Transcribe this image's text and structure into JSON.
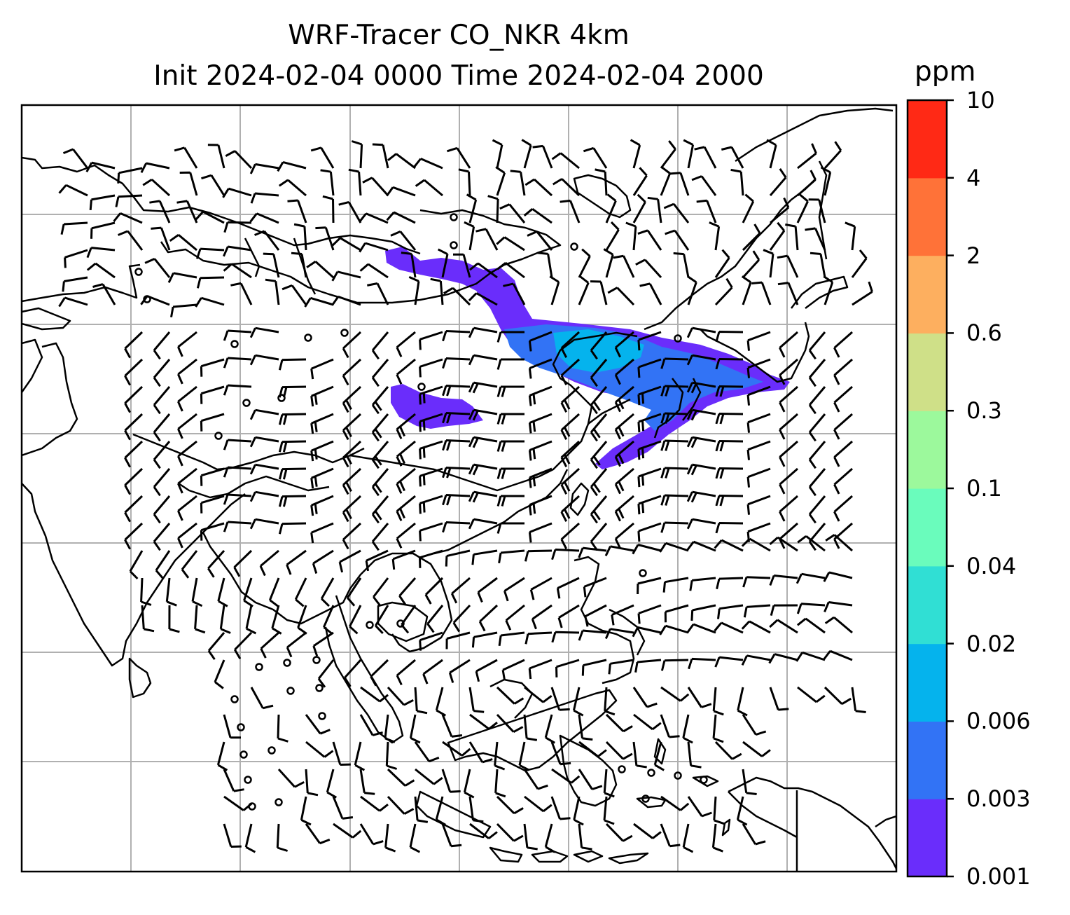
{
  "title": {
    "line1": "WRF-Tracer CO_NKR 4km",
    "line2": "Init 2024-02-04 0000 Time 2024-02-04 2000"
  },
  "colorbar": {
    "unit": "ppm",
    "levels": [
      "0.001",
      "0.003",
      "0.006",
      "0.02",
      "0.04",
      "0.1",
      "0.3",
      "0.6",
      "2",
      "4",
      "10"
    ],
    "colors": [
      "#6a2dfb",
      "#3273f5",
      "#05b3ed",
      "#30dfd4",
      "#6afcbc",
      "#9cf99c",
      "#cfe088",
      "#fdaf5f",
      "#ff7238",
      "#ff2915"
    ]
  },
  "map": {
    "coastline_color": "#000000",
    "gridline_color": "#b0b0b0",
    "plume_colors": {
      "outer": "#6a2dfb",
      "mid": "#3273f5",
      "core": "#05b3ed"
    }
  }
}
